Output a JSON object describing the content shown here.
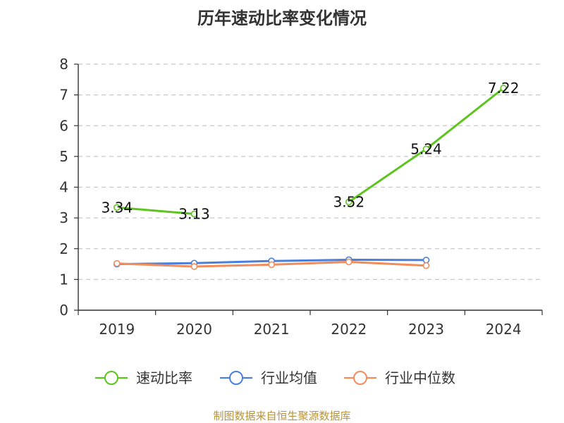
{
  "chart_data": {
    "type": "line",
    "title": "历年速动比率变化情况",
    "categories": [
      "2019",
      "2020",
      "2021",
      "2022",
      "2023",
      "2024"
    ],
    "ylim": [
      0,
      8
    ],
    "yticks": [
      "0",
      "1",
      "2",
      "3",
      "4",
      "5",
      "6",
      "7",
      "8"
    ],
    "grid": true,
    "legend_position": "bottom",
    "series": [
      {
        "name": "速动比率",
        "color": "#5cc31f",
        "values": [
          3.34,
          3.13,
          null,
          3.52,
          5.24,
          7.22
        ],
        "labels": [
          "3.34",
          "3.13",
          "",
          "3.52",
          "5.24",
          "7.22"
        ]
      },
      {
        "name": "行业均值",
        "color": "#4a7fdb",
        "values": [
          1.5,
          1.53,
          1.6,
          1.64,
          1.63,
          null
        ]
      },
      {
        "name": "行业中位数",
        "color": "#f28c5b",
        "values": [
          1.52,
          1.42,
          1.48,
          1.57,
          1.45,
          null
        ]
      }
    ]
  },
  "source_text": "制图数据来自恒生聚源数据库"
}
